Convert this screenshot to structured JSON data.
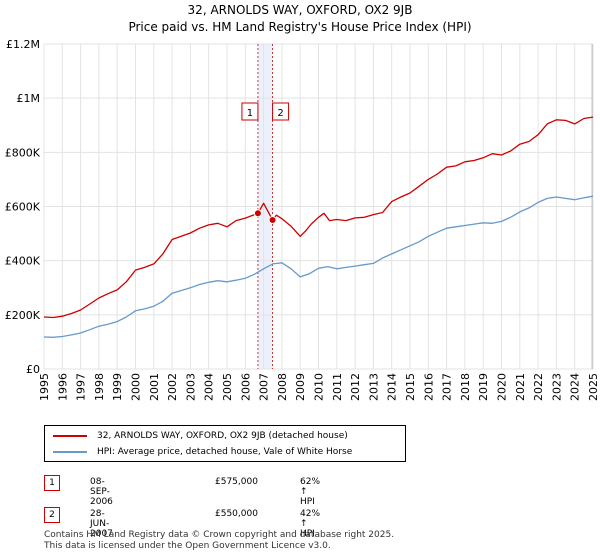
{
  "header": {
    "title": "32, ARNOLDS WAY, OXFORD, OX2 9JB",
    "subtitle": "Price paid vs. HM Land Registry's House Price Index (HPI)"
  },
  "chart_data": {
    "type": "line",
    "title": "32, ARNOLDS WAY, OXFORD, OX2 9JB",
    "subtitle": "Price paid vs. HM Land Registry's House Price Index (HPI)",
    "xlabel": "",
    "ylabel": "",
    "xlim": [
      1995,
      2025
    ],
    "ylim": [
      0,
      1200000
    ],
    "grid": true,
    "y_ticks": [
      0,
      200000,
      400000,
      600000,
      800000,
      1000000,
      1200000
    ],
    "y_tick_labels": [
      "£0",
      "£200K",
      "£400K",
      "£600K",
      "£800K",
      "£1M",
      "£1.2M"
    ],
    "x_ticks": [
      1995,
      1996,
      1997,
      1998,
      1999,
      2000,
      2001,
      2002,
      2003,
      2004,
      2005,
      2006,
      2007,
      2008,
      2009,
      2010,
      2011,
      2012,
      2013,
      2014,
      2015,
      2016,
      2017,
      2018,
      2019,
      2020,
      2021,
      2022,
      2023,
      2024,
      2025
    ],
    "x_tick_labels": [
      "1995",
      "1996",
      "1997",
      "1998",
      "1999",
      "2000",
      "2001",
      "2002",
      "2003",
      "2004",
      "2005",
      "2006",
      "2007",
      "2008",
      "2009",
      "2010",
      "2011",
      "2012",
      "2013",
      "2014",
      "2015",
      "2016",
      "2017",
      "2018",
      "2019",
      "2020",
      "2021",
      "2022",
      "2023",
      "2024",
      "2025"
    ],
    "series": [
      {
        "name": "32, ARNOLDS WAY, OXFORD, OX2 9JB (detached house)",
        "color": "#cc0000",
        "x": [
          1995,
          1995.5,
          1996,
          1996.5,
          1997,
          1997.5,
          1998,
          1998.5,
          1999,
          1999.5,
          2000,
          2000.5,
          2001,
          2001.5,
          2002,
          2002.5,
          2003,
          2003.5,
          2004,
          2004.5,
          2005,
          2005.5,
          2006,
          2006.69,
          2007,
          2007.49,
          2007.7,
          2008,
          2008.5,
          2009,
          2009.3,
          2009.6,
          2010,
          2010.3,
          2010.6,
          2011,
          2011.5,
          2012,
          2012.5,
          2013,
          2013.5,
          2014,
          2014.5,
          2015,
          2015.5,
          2016,
          2016.5,
          2017,
          2017.5,
          2018,
          2018.5,
          2019,
          2019.5,
          2020,
          2020.5,
          2021,
          2021.5,
          2022,
          2022.5,
          2023,
          2023.5,
          2024,
          2024.5,
          2025
        ],
        "values": [
          192000,
          190000,
          195000,
          205000,
          218000,
          240000,
          262000,
          278000,
          292000,
          322000,
          365000,
          375000,
          388000,
          425000,
          478000,
          490000,
          502000,
          520000,
          532000,
          538000,
          525000,
          548000,
          557000,
          575000,
          612000,
          550000,
          568000,
          555000,
          527000,
          490000,
          510000,
          535000,
          560000,
          575000,
          548000,
          552000,
          548000,
          558000,
          560000,
          570000,
          578000,
          618000,
          635000,
          650000,
          675000,
          700000,
          720000,
          745000,
          750000,
          765000,
          770000,
          780000,
          795000,
          790000,
          805000,
          830000,
          840000,
          865000,
          905000,
          920000,
          918000,
          905000,
          925000,
          930000
        ]
      },
      {
        "name": "HPI: Average price, detached house, Vale of White Horse",
        "color": "#6699cc",
        "x": [
          1995,
          1995.5,
          1996,
          1996.5,
          1997,
          1997.5,
          1998,
          1998.5,
          1999,
          1999.5,
          2000,
          2000.5,
          2001,
          2001.5,
          2002,
          2002.5,
          2003,
          2003.5,
          2004,
          2004.5,
          2005,
          2005.5,
          2006,
          2006.5,
          2007,
          2007.5,
          2008,
          2008.5,
          2009,
          2009.5,
          2010,
          2010.5,
          2011,
          2011.5,
          2012,
          2012.5,
          2013,
          2013.5,
          2014,
          2014.5,
          2015,
          2015.5,
          2016,
          2016.5,
          2017,
          2017.5,
          2018,
          2018.5,
          2019,
          2019.5,
          2020,
          2020.5,
          2021,
          2021.5,
          2022,
          2022.5,
          2023,
          2023.5,
          2024,
          2024.5,
          2025
        ],
        "values": [
          118000,
          117000,
          120000,
          126000,
          133000,
          145000,
          158000,
          165000,
          175000,
          192000,
          215000,
          222000,
          232000,
          250000,
          280000,
          290000,
          300000,
          312000,
          320000,
          326000,
          322000,
          328000,
          335000,
          350000,
          370000,
          388000,
          392000,
          370000,
          340000,
          352000,
          372000,
          378000,
          370000,
          375000,
          380000,
          385000,
          390000,
          410000,
          425000,
          440000,
          455000,
          470000,
          490000,
          505000,
          520000,
          525000,
          530000,
          535000,
          540000,
          538000,
          545000,
          560000,
          580000,
          595000,
          615000,
          630000,
          635000,
          630000,
          625000,
          632000,
          638000
        ]
      }
    ],
    "sales": [
      {
        "label": "1",
        "x": 2006.69,
        "value": 575000
      },
      {
        "label": "2",
        "x": 2007.49,
        "value": 550000
      }
    ]
  },
  "legend": {
    "items": [
      {
        "label": "32, ARNOLDS WAY, OXFORD, OX2 9JB (detached house)",
        "color": "#cc0000"
      },
      {
        "label": "HPI: Average price, detached house, Vale of White Horse",
        "color": "#6699cc"
      }
    ]
  },
  "transactions": [
    {
      "num": "1",
      "date": "08-SEP-2006",
      "price": "£575,000",
      "hpi": "62% ↑ HPI"
    },
    {
      "num": "2",
      "date": "28-JUN-2007",
      "price": "£550,000",
      "hpi": "42% ↑ HPI"
    }
  ],
  "footer": {
    "line1": "Contains HM Land Registry data © Crown copyright and database right 2025.",
    "line2": "This data is licensed under the Open Government Licence v3.0."
  }
}
